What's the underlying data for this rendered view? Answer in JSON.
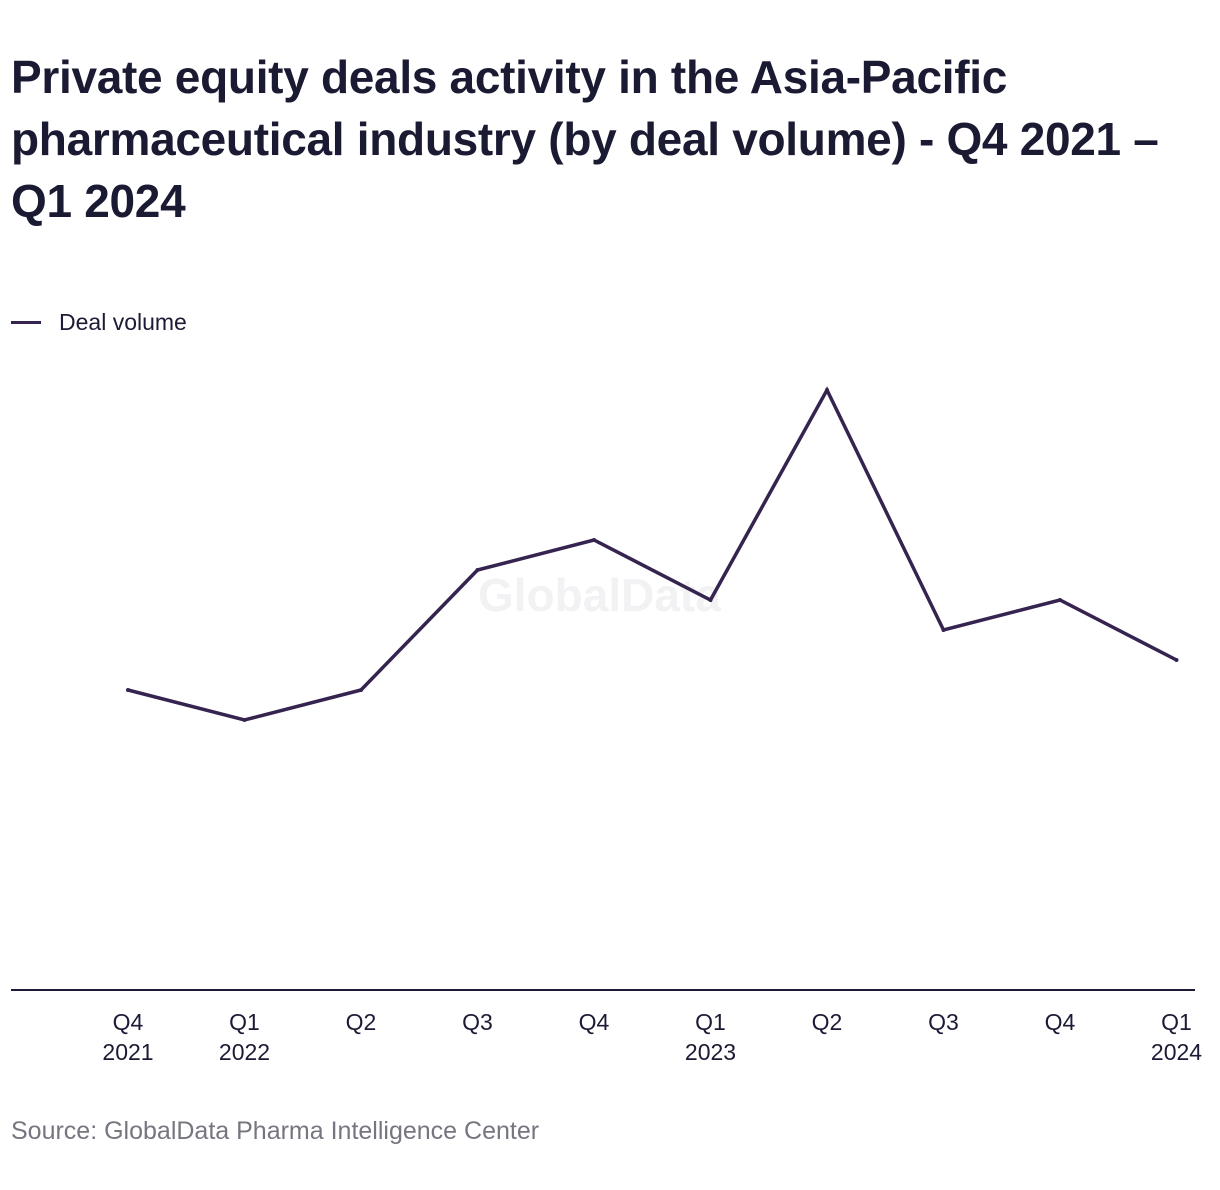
{
  "title": "Private equity deals activity in the Asia-Pacific pharmaceutical industry (by deal volume) - Q4 2021 – Q1 2024",
  "watermark": "GlobalData",
  "source": "Source: GlobalData Pharma Intelligence Center",
  "colors": {
    "series_line": "#35244f",
    "axis": "#1c1b35",
    "text": "#1b1a33",
    "source_text": "#77757f"
  },
  "chart_data": {
    "type": "line",
    "title": "Private equity deals activity in the Asia-Pacific pharmaceutical industry (by deal volume) - Q4 2021 – Q1 2024",
    "xlabel": "",
    "ylabel": "",
    "categories": [
      [
        "Q4",
        "2021"
      ],
      [
        "Q1",
        "2022"
      ],
      [
        "Q2",
        ""
      ],
      [
        "Q3",
        ""
      ],
      [
        "Q4",
        ""
      ],
      [
        "Q1",
        "2023"
      ],
      [
        "Q2",
        ""
      ],
      [
        "Q3",
        ""
      ],
      [
        "Q4",
        ""
      ],
      [
        "Q1",
        "2024"
      ]
    ],
    "series": [
      {
        "name": "Deal volume",
        "values": [
          10,
          9,
          10,
          14,
          15,
          13,
          20,
          12,
          13,
          11
        ]
      }
    ],
    "ylim": [
      0,
      30
    ],
    "y_axis_labels_shown": false,
    "grid": false,
    "legend": "top-left"
  }
}
